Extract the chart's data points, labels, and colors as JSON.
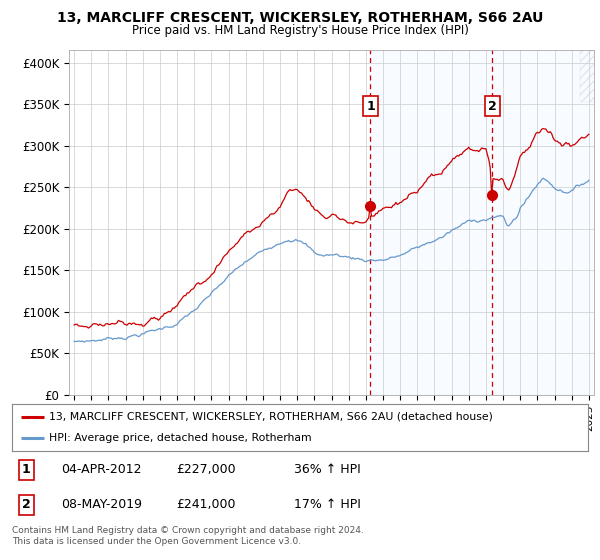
{
  "title": "13, MARCLIFF CRESCENT, WICKERSLEY, ROTHERHAM, S66 2AU",
  "subtitle": "Price paid vs. HM Land Registry's House Price Index (HPI)",
  "ylabel_ticks": [
    "£0",
    "£50K",
    "£100K",
    "£150K",
    "£200K",
    "£250K",
    "£300K",
    "£350K",
    "£400K"
  ],
  "ytick_vals": [
    0,
    50000,
    100000,
    150000,
    200000,
    250000,
    300000,
    350000,
    400000
  ],
  "ylim": [
    0,
    415000
  ],
  "xlim_start": 1994.7,
  "xlim_end": 2025.3,
  "xtick_years": [
    1995,
    1996,
    1997,
    1998,
    1999,
    2000,
    2001,
    2002,
    2003,
    2004,
    2005,
    2006,
    2007,
    2008,
    2009,
    2010,
    2011,
    2012,
    2013,
    2014,
    2015,
    2016,
    2017,
    2018,
    2019,
    2020,
    2021,
    2022,
    2023,
    2024,
    2025
  ],
  "red_line_color": "#cc0000",
  "blue_line_color": "#6699cc",
  "blue_fill_color": "#ddeeff",
  "dashed_line_color": "#cc0000",
  "vspan_start": 2012.25,
  "vspan_end": 2025.3,
  "marker1_x": 2012.27,
  "marker1_y": 227000,
  "marker2_x": 2019.37,
  "marker2_y": 241000,
  "vline1_x": 2012.27,
  "vline2_x": 2019.37,
  "legend_label_red": "13, MARCLIFF CRESCENT, WICKERSLEY, ROTHERHAM, S66 2AU (detached house)",
  "legend_label_blue": "HPI: Average price, detached house, Rotherham",
  "table_rows": [
    {
      "num": "1",
      "date": "04-APR-2012",
      "price": "£227,000",
      "change": "36% ↑ HPI"
    },
    {
      "num": "2",
      "date": "08-MAY-2019",
      "price": "£241,000",
      "change": "17% ↑ HPI"
    }
  ],
  "footnote": "Contains HM Land Registry data © Crown copyright and database right 2024.\nThis data is licensed under the Open Government Licence v3.0.",
  "bg_color": "#ffffff",
  "plot_bg_color": "#ffffff"
}
